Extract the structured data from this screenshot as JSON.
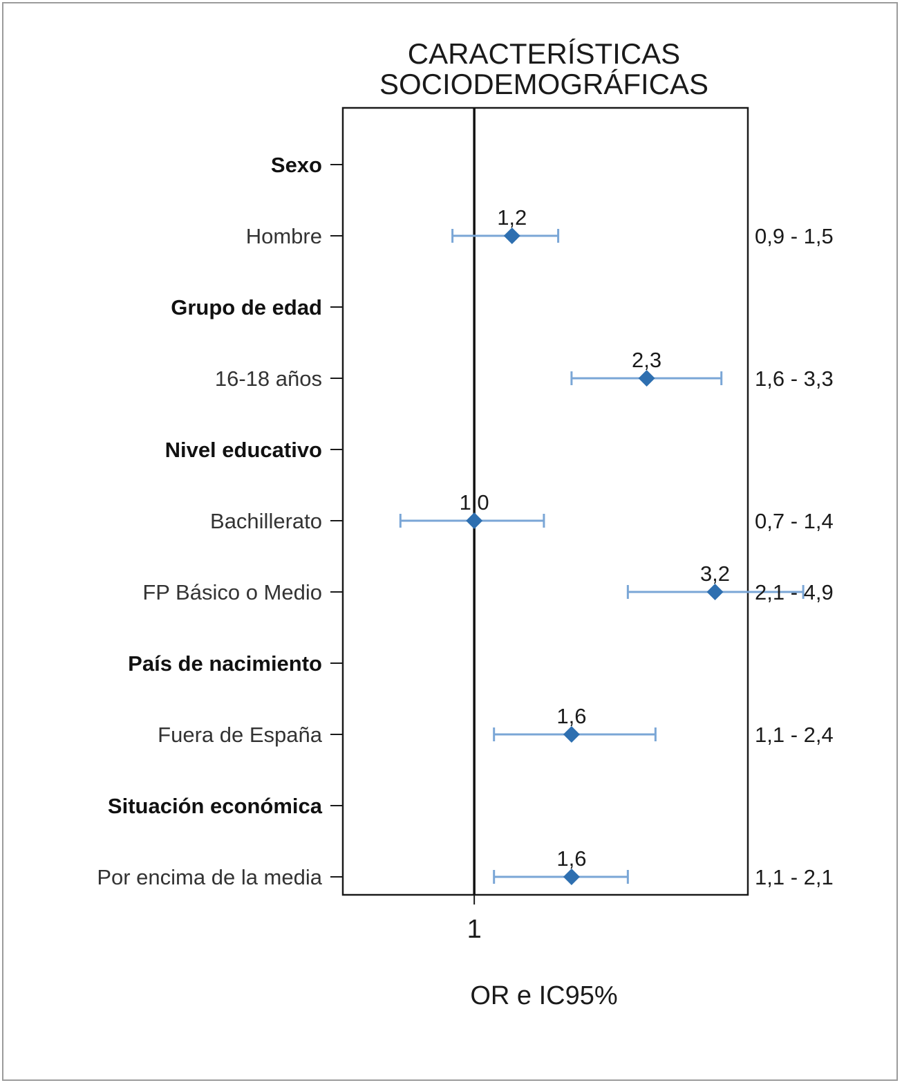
{
  "chart_data": {
    "type": "forest",
    "title_lines": [
      "CARACTERÍSTICAS",
      "SOCIODEMOGRÁFICAS"
    ],
    "xlabel": "OR e IC95%",
    "x_tick_labels": [
      {
        "value": 1,
        "label": "1"
      }
    ],
    "xlim": [
      0.53,
      3.75
    ],
    "reference_line": 1,
    "marker_color": "#2e6fb0",
    "ci_color": "#7aa6d6",
    "rows": [
      {
        "label": "Sexo",
        "group_header": true
      },
      {
        "label": "Hombre",
        "group_header": false,
        "or": 1.2,
        "or_label": "1,2",
        "lower": 0.9,
        "upper": 1.5,
        "ci_label": "0,9 - 1,5"
      },
      {
        "label": "Grupo de edad",
        "group_header": true
      },
      {
        "label": "16-18 años",
        "group_header": false,
        "or": 2.3,
        "or_label": "2,3",
        "lower": 1.6,
        "upper": 3.3,
        "ci_label": "1,6 - 3,3"
      },
      {
        "label": "Nivel educativo",
        "group_header": true
      },
      {
        "label": "Bachillerato",
        "group_header": false,
        "or": 1.0,
        "or_label": "1,0",
        "lower": 0.7,
        "upper": 1.4,
        "ci_label": "0,7 - 1,4"
      },
      {
        "label": "FP Básico o Medio",
        "group_header": false,
        "or": 3.2,
        "or_label": "3,2",
        "lower": 2.1,
        "upper": 4.9,
        "ci_label": "2,1 - 4,9"
      },
      {
        "label": "País de nacimiento",
        "group_header": true
      },
      {
        "label": "Fuera de España",
        "group_header": false,
        "or": 1.6,
        "or_label": "1,6",
        "lower": 1.1,
        "upper": 2.4,
        "ci_label": "1,1 - 2,4"
      },
      {
        "label": "Situación económica",
        "group_header": true
      },
      {
        "label": "Por encima de la media",
        "group_header": false,
        "or": 1.6,
        "or_label": "1,6",
        "lower": 1.1,
        "upper": 2.1,
        "ci_label": "1,1 - 2,1"
      }
    ]
  }
}
